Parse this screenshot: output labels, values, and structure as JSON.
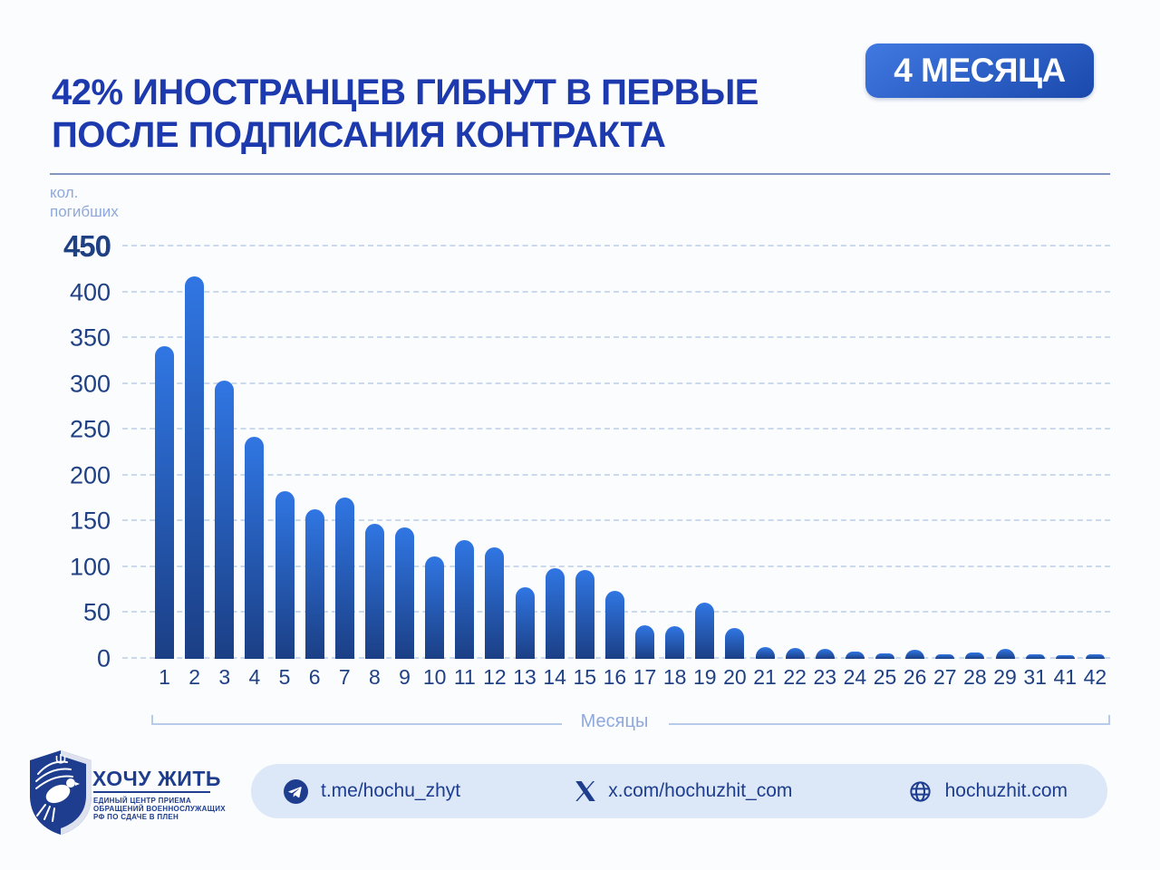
{
  "header": {
    "title_line1": "42% ИНОСТРАНЦЕВ ГИБНУТ В ПЕРВЫЕ",
    "title_line2": "ПОСЛЕ ПОДПИСАНИЯ КОНТРАКТА",
    "badge": "4 МЕСЯЦА"
  },
  "y_axis": {
    "label_line1": "кол.",
    "label_line2": "погибших"
  },
  "x_axis": {
    "label": "Месяцы"
  },
  "chart_data": {
    "type": "bar",
    "title": "42% иностранцев гибнут в первые 4 месяца после подписания контракта",
    "xlabel": "Месяцы",
    "ylabel": "кол. погибших",
    "ylim": [
      0,
      450
    ],
    "ytick_step": 50,
    "grid": "horizontal-dashed",
    "legend": "none",
    "categories": [
      "1",
      "2",
      "3",
      "4",
      "5",
      "6",
      "7",
      "8",
      "9",
      "10",
      "11",
      "12",
      "13",
      "14",
      "15",
      "16",
      "17",
      "18",
      "19",
      "20",
      "21",
      "22",
      "23",
      "24",
      "25",
      "26",
      "27",
      "28",
      "29",
      "31",
      "41",
      "42"
    ],
    "values": [
      341,
      417,
      304,
      242,
      183,
      163,
      176,
      147,
      143,
      112,
      130,
      122,
      78,
      99,
      97,
      74,
      37,
      36,
      61,
      34,
      13,
      12,
      11,
      8,
      6,
      10,
      5,
      7,
      11,
      5,
      4,
      5
    ]
  },
  "footer": {
    "brand": "ХОЧУ ЖИТЬ",
    "brand_sub_line1": "ЕДИНЫЙ ЦЕНТР ПРИЕМА",
    "brand_sub_line2": "ОБРАЩЕНИЙ ВОЕННОСЛУЖАЩИХ",
    "brand_sub_line3": "РФ ПО СДАЧЕ В ПЛЕН",
    "links": [
      {
        "icon": "telegram-icon",
        "text": "t.me/hochu_zhyt"
      },
      {
        "icon": "x-icon",
        "text": "x.com/hochuzhit_com"
      },
      {
        "icon": "globe-icon",
        "text": "hochuzhit.com"
      }
    ]
  },
  "colors": {
    "title": "#1c3aae",
    "axis_text": "#1f4184",
    "muted_label": "#8fa9dc",
    "gridline": "#cbd9ec",
    "top_rule": "#8096c2",
    "bracket": "#b6cbec",
    "bar_top": "#3076e3",
    "bar_bottom": "#1b3f85",
    "badge_top": "#4079e2",
    "badge_bottom": "#1b49ac",
    "pill_bg": "#dce8f8",
    "navy": "#1e3d8f"
  }
}
